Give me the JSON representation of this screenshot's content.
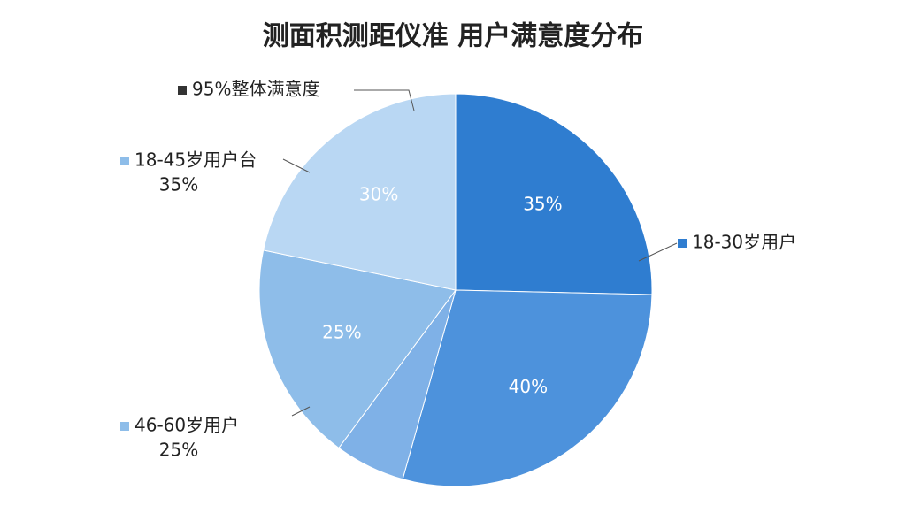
{
  "chart_data": {
    "type": "pie",
    "title": "测面积测距仪准 用户满意度分布",
    "values": [
      35,
      40,
      8,
      25,
      30
    ],
    "value_labels": [
      "35%",
      "40%",
      null,
      "25%",
      "30%"
    ],
    "colors": [
      "#2f7dd0",
      "#4d92dc",
      "#7fb1e7",
      "#8ebde9",
      "#b9d7f3"
    ],
    "annotations": [
      {
        "lines": [
          "18-30岁用户"
        ],
        "color": "#2f7dd0"
      },
      {
        "lines": [
          "46-60岁用户",
          "25%"
        ],
        "color": "#8ebde9"
      },
      {
        "lines": [
          "18-45岁用户台",
          "35%"
        ],
        "color": "#8ebde9"
      },
      {
        "lines": [
          "95%整体满意度"
        ],
        "color": "#333333"
      }
    ]
  }
}
